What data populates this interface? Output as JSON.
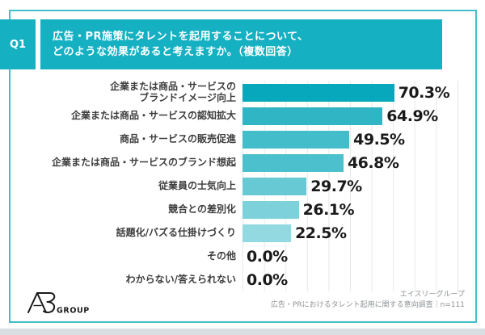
{
  "header": {
    "q_label": "Q1",
    "title": "広告・PR施策にタレントを起用することについて、\nどのような効果があると考えますか。（複数回答）"
  },
  "chart_data": {
    "type": "bar",
    "orientation": "horizontal",
    "title": "広告・PR施策にタレントを起用することについて、どのような効果があると考えますか。（複数回答）",
    "categories": [
      "企業または商品・サービスの\nブランドイメージ向上",
      "企業または商品・サービスの認知拡大",
      "商品・サービスの販売促進",
      "企業または商品・サービスのブランド想起",
      "従業員の士気向上",
      "競合との差別化",
      "話題化/バズる仕掛けづくり",
      "その他",
      "わからない/答えられない"
    ],
    "values": [
      70.3,
      64.9,
      49.5,
      46.8,
      29.7,
      26.1,
      22.5,
      0.0,
      0.0
    ],
    "value_labels": [
      "70.3%",
      "64.9%",
      "49.5%",
      "46.8%",
      "29.7%",
      "26.1%",
      "22.5%",
      "0.0%",
      "0.0%"
    ],
    "xlim": [
      0,
      100
    ],
    "gridline_step_percent": 10,
    "grid": true,
    "bar_colors": [
      "#07a8bb",
      "#2fb5c4",
      "#43bdca",
      "#4dc0cd",
      "#66c9d4",
      "#7cd1da",
      "#93d9e1",
      "#ffffff",
      "#ffffff"
    ]
  },
  "footer": {
    "logo_text": "GROUP",
    "logo_mark": "A3",
    "credit_line1": "エイスリーグループ",
    "credit_line2": "広告・PRにおけるタレント起用に関する意向調査｜n=111"
  },
  "colors": {
    "accent_teal": "#15b1c3",
    "frame_border": "#41bfcc",
    "gridline": "#e5e8ea",
    "category_label": "#3d3d3d",
    "value_label": "#1a1a1a",
    "credit_text": "#8d9296",
    "bottom_strip": "#d9dee2",
    "logo_black": "#1a1a1a"
  }
}
